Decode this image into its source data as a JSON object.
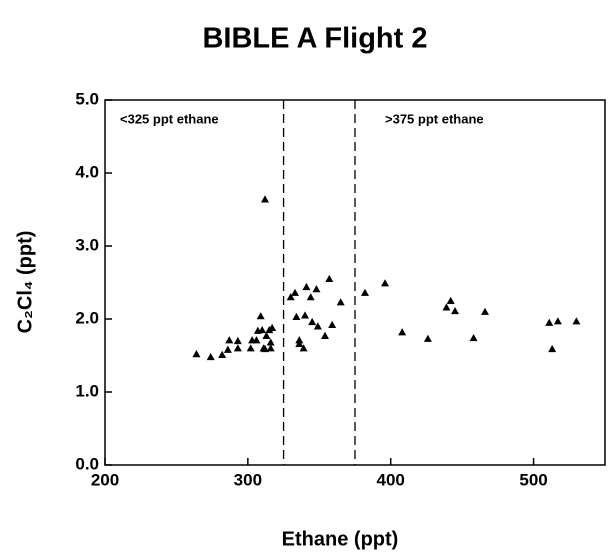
{
  "chart_data": {
    "type": "scatter",
    "title": "BIBLE A Flight 2",
    "xlabel": "Ethane (ppt)",
    "ylabel": "C₂Cl₄ (ppt)",
    "series": [
      {
        "name": null,
        "color": "#000000",
        "marker": "triangle",
        "x": [
          264,
          274,
          282,
          286,
          287,
          293,
          293,
          302,
          303,
          306,
          307,
          309,
          310,
          311,
          313,
          315,
          316,
          316,
          317,
          312,
          312,
          330,
          333,
          334,
          336,
          336,
          339,
          341,
          344,
          345,
          348,
          349,
          354,
          357,
          359,
          365,
          340,
          382,
          396,
          408,
          426,
          439,
          442,
          445,
          458,
          466,
          511,
          513,
          517,
          530
        ],
        "values": [
          1.52,
          1.48,
          1.51,
          1.58,
          1.71,
          1.7,
          1.6,
          1.6,
          1.71,
          1.71,
          1.84,
          2.04,
          1.85,
          1.6,
          1.77,
          1.85,
          1.68,
          1.6,
          1.88,
          1.59,
          3.64,
          2.3,
          2.36,
          2.03,
          1.71,
          1.66,
          1.6,
          2.44,
          2.3,
          1.96,
          2.41,
          1.9,
          1.77,
          2.55,
          1.92,
          2.23,
          2.05,
          2.36,
          2.49,
          1.82,
          1.73,
          2.16,
          2.25,
          2.11,
          1.74,
          2.1,
          1.95,
          1.59,
          1.97,
          1.97
        ]
      }
    ],
    "vlines": [
      325,
      375
    ],
    "annotations": [
      "<325 ppt ethane",
      ">375 ppt ethane"
    ],
    "xlim": [
      200,
      550
    ],
    "xticks": [
      200,
      300,
      400,
      500
    ],
    "ylim": [
      0,
      5
    ],
    "yticks": [
      {
        "value": 0,
        "label": "0.0"
      },
      {
        "value": 1,
        "label": "1.0"
      },
      {
        "value": 2,
        "label": "2.0"
      },
      {
        "value": 3,
        "label": "3.0"
      },
      {
        "value": 4,
        "label": "4.0"
      },
      {
        "value": 5,
        "label": "5.0"
      }
    ],
    "grid": false
  }
}
